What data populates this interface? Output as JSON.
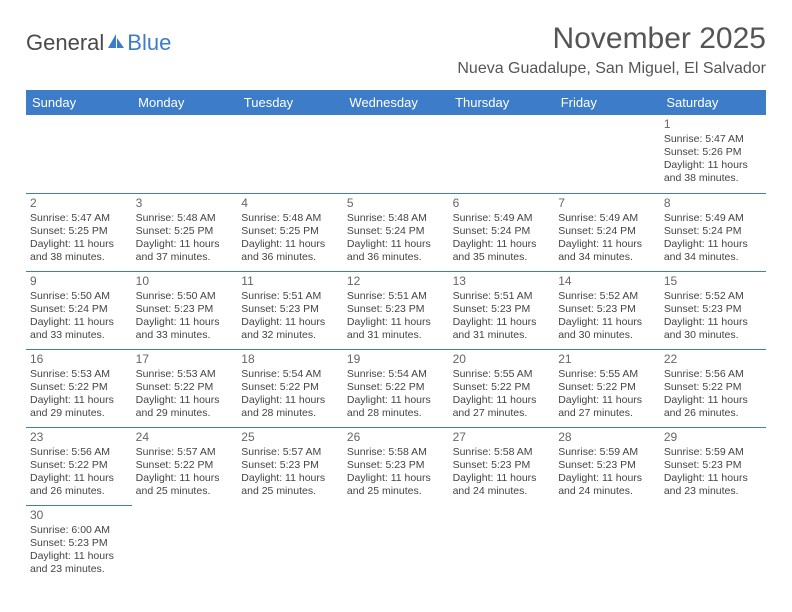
{
  "logo": {
    "text1": "General",
    "text2": "Blue"
  },
  "title": "November 2025",
  "subtitle": "Nueva Guadalupe, San Miguel, El Salvador",
  "header_bg": "#3d7cc9",
  "header_fg": "#ffffff",
  "border_color": "#3d7cc9",
  "text_color": "#444444",
  "daynum_color": "#666666",
  "days": [
    "Sunday",
    "Monday",
    "Tuesday",
    "Wednesday",
    "Thursday",
    "Friday",
    "Saturday"
  ],
  "cells": [
    [
      null,
      null,
      null,
      null,
      null,
      null,
      {
        "n": "1",
        "sr": "5:47 AM",
        "ss": "5:26 PM",
        "dl": "11 hours and 38 minutes."
      }
    ],
    [
      {
        "n": "2",
        "sr": "5:47 AM",
        "ss": "5:25 PM",
        "dl": "11 hours and 38 minutes."
      },
      {
        "n": "3",
        "sr": "5:48 AM",
        "ss": "5:25 PM",
        "dl": "11 hours and 37 minutes."
      },
      {
        "n": "4",
        "sr": "5:48 AM",
        "ss": "5:25 PM",
        "dl": "11 hours and 36 minutes."
      },
      {
        "n": "5",
        "sr": "5:48 AM",
        "ss": "5:24 PM",
        "dl": "11 hours and 36 minutes."
      },
      {
        "n": "6",
        "sr": "5:49 AM",
        "ss": "5:24 PM",
        "dl": "11 hours and 35 minutes."
      },
      {
        "n": "7",
        "sr": "5:49 AM",
        "ss": "5:24 PM",
        "dl": "11 hours and 34 minutes."
      },
      {
        "n": "8",
        "sr": "5:49 AM",
        "ss": "5:24 PM",
        "dl": "11 hours and 34 minutes."
      }
    ],
    [
      {
        "n": "9",
        "sr": "5:50 AM",
        "ss": "5:24 PM",
        "dl": "11 hours and 33 minutes."
      },
      {
        "n": "10",
        "sr": "5:50 AM",
        "ss": "5:23 PM",
        "dl": "11 hours and 33 minutes."
      },
      {
        "n": "11",
        "sr": "5:51 AM",
        "ss": "5:23 PM",
        "dl": "11 hours and 32 minutes."
      },
      {
        "n": "12",
        "sr": "5:51 AM",
        "ss": "5:23 PM",
        "dl": "11 hours and 31 minutes."
      },
      {
        "n": "13",
        "sr": "5:51 AM",
        "ss": "5:23 PM",
        "dl": "11 hours and 31 minutes."
      },
      {
        "n": "14",
        "sr": "5:52 AM",
        "ss": "5:23 PM",
        "dl": "11 hours and 30 minutes."
      },
      {
        "n": "15",
        "sr": "5:52 AM",
        "ss": "5:23 PM",
        "dl": "11 hours and 30 minutes."
      }
    ],
    [
      {
        "n": "16",
        "sr": "5:53 AM",
        "ss": "5:22 PM",
        "dl": "11 hours and 29 minutes."
      },
      {
        "n": "17",
        "sr": "5:53 AM",
        "ss": "5:22 PM",
        "dl": "11 hours and 29 minutes."
      },
      {
        "n": "18",
        "sr": "5:54 AM",
        "ss": "5:22 PM",
        "dl": "11 hours and 28 minutes."
      },
      {
        "n": "19",
        "sr": "5:54 AM",
        "ss": "5:22 PM",
        "dl": "11 hours and 28 minutes."
      },
      {
        "n": "20",
        "sr": "5:55 AM",
        "ss": "5:22 PM",
        "dl": "11 hours and 27 minutes."
      },
      {
        "n": "21",
        "sr": "5:55 AM",
        "ss": "5:22 PM",
        "dl": "11 hours and 27 minutes."
      },
      {
        "n": "22",
        "sr": "5:56 AM",
        "ss": "5:22 PM",
        "dl": "11 hours and 26 minutes."
      }
    ],
    [
      {
        "n": "23",
        "sr": "5:56 AM",
        "ss": "5:22 PM",
        "dl": "11 hours and 26 minutes."
      },
      {
        "n": "24",
        "sr": "5:57 AM",
        "ss": "5:22 PM",
        "dl": "11 hours and 25 minutes."
      },
      {
        "n": "25",
        "sr": "5:57 AM",
        "ss": "5:23 PM",
        "dl": "11 hours and 25 minutes."
      },
      {
        "n": "26",
        "sr": "5:58 AM",
        "ss": "5:23 PM",
        "dl": "11 hours and 25 minutes."
      },
      {
        "n": "27",
        "sr": "5:58 AM",
        "ss": "5:23 PM",
        "dl": "11 hours and 24 minutes."
      },
      {
        "n": "28",
        "sr": "5:59 AM",
        "ss": "5:23 PM",
        "dl": "11 hours and 24 minutes."
      },
      {
        "n": "29",
        "sr": "5:59 AM",
        "ss": "5:23 PM",
        "dl": "11 hours and 23 minutes."
      }
    ],
    [
      {
        "n": "30",
        "sr": "6:00 AM",
        "ss": "5:23 PM",
        "dl": "11 hours and 23 minutes."
      },
      null,
      null,
      null,
      null,
      null,
      null
    ]
  ],
  "labels": {
    "sunrise": "Sunrise: ",
    "sunset": "Sunset: ",
    "daylight": "Daylight: "
  }
}
